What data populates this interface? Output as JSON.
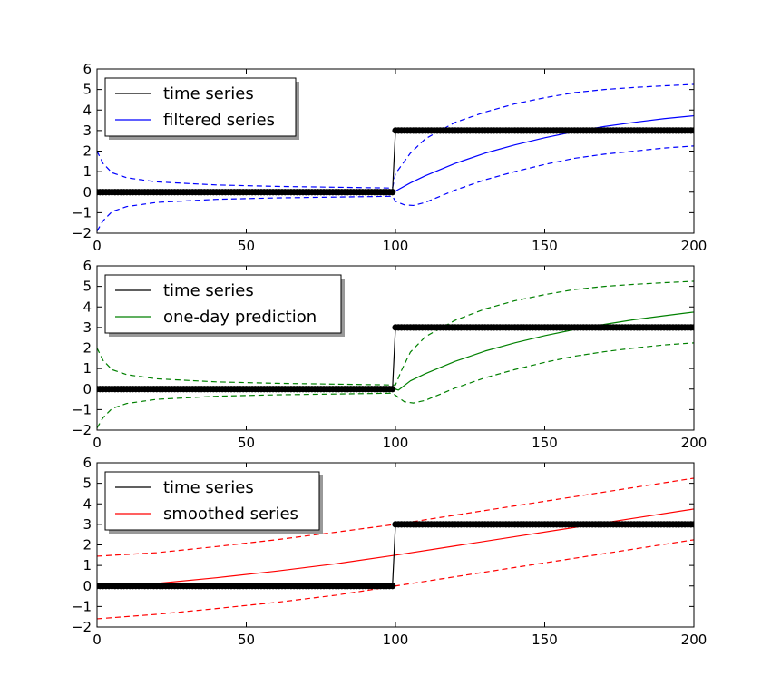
{
  "chart_data": [
    {
      "type": "line",
      "xlim": [
        0,
        200
      ],
      "ylim": [
        -2,
        6
      ],
      "xticks": [
        0,
        50,
        100,
        150,
        200
      ],
      "yticks": [
        -2,
        -1,
        0,
        1,
        2,
        3,
        4,
        5,
        6
      ],
      "grid": false,
      "legend_position": "upper-left",
      "legend": [
        "time series",
        "filtered series"
      ],
      "series": [
        {
          "name": "time series",
          "role": "observed",
          "color": "#000000",
          "x": [
            0,
            99,
            100,
            200
          ],
          "y": [
            0,
            0,
            3,
            3
          ]
        },
        {
          "name": "filtered series",
          "role": "estimate",
          "color": "#0000ff",
          "x": [
            0,
            10,
            20,
            40,
            60,
            80,
            99,
            100,
            105,
            110,
            120,
            130,
            140,
            150,
            160,
            170,
            180,
            190,
            200
          ],
          "y": [
            0,
            0,
            0,
            0,
            0,
            0,
            0,
            0.05,
            0.45,
            0.8,
            1.4,
            1.9,
            2.3,
            2.65,
            2.95,
            3.2,
            3.4,
            3.58,
            3.72
          ]
        },
        {
          "role": "upper-band",
          "color": "#0000ff",
          "x": [
            0,
            2,
            5,
            10,
            20,
            40,
            60,
            80,
            99,
            100,
            105,
            110,
            120,
            130,
            140,
            150,
            160,
            170,
            180,
            190,
            200
          ],
          "y": [
            2.0,
            1.4,
            0.95,
            0.7,
            0.5,
            0.35,
            0.28,
            0.24,
            0.2,
            0.9,
            1.9,
            2.6,
            3.4,
            3.9,
            4.3,
            4.6,
            4.85,
            5.0,
            5.1,
            5.18,
            5.25
          ]
        },
        {
          "role": "lower-band",
          "color": "#0000ff",
          "x": [
            0,
            2,
            5,
            10,
            20,
            40,
            60,
            80,
            99,
            100,
            103,
            106,
            110,
            115,
            120,
            130,
            140,
            150,
            160,
            170,
            180,
            190,
            200
          ],
          "y": [
            -1.9,
            -1.4,
            -0.95,
            -0.7,
            -0.5,
            -0.35,
            -0.28,
            -0.24,
            -0.2,
            -0.45,
            -0.62,
            -0.65,
            -0.5,
            -0.2,
            0.1,
            0.6,
            1.0,
            1.35,
            1.65,
            1.85,
            2.0,
            2.15,
            2.25
          ]
        }
      ]
    },
    {
      "type": "line",
      "xlim": [
        0,
        200
      ],
      "ylim": [
        -2,
        6
      ],
      "xticks": [
        0,
        50,
        100,
        150,
        200
      ],
      "yticks": [
        -2,
        -1,
        0,
        1,
        2,
        3,
        4,
        5,
        6
      ],
      "grid": false,
      "legend_position": "upper-left",
      "legend": [
        "time series",
        "one-day prediction"
      ],
      "series": [
        {
          "name": "time series",
          "role": "observed",
          "color": "#000000",
          "x": [
            0,
            99,
            100,
            200
          ],
          "y": [
            0,
            0,
            3,
            3
          ]
        },
        {
          "name": "one-day prediction",
          "role": "estimate",
          "color": "#008000",
          "x": [
            0,
            10,
            20,
            40,
            60,
            80,
            99,
            100,
            101,
            105,
            110,
            120,
            130,
            140,
            150,
            160,
            170,
            180,
            190,
            200
          ],
          "y": [
            0,
            0,
            0,
            0,
            0,
            0,
            0,
            0,
            -0.05,
            0.4,
            0.75,
            1.35,
            1.85,
            2.25,
            2.6,
            2.9,
            3.15,
            3.38,
            3.57,
            3.75
          ]
        },
        {
          "role": "upper-band",
          "color": "#008000",
          "x": [
            0,
            2,
            5,
            10,
            20,
            40,
            60,
            80,
            99,
            100,
            102,
            105,
            110,
            120,
            130,
            140,
            150,
            160,
            170,
            180,
            190,
            200
          ],
          "y": [
            2.0,
            1.4,
            0.95,
            0.7,
            0.5,
            0.35,
            0.28,
            0.24,
            0.2,
            0.2,
            0.9,
            1.8,
            2.55,
            3.35,
            3.9,
            4.3,
            4.6,
            4.85,
            5.0,
            5.1,
            5.18,
            5.25
          ]
        },
        {
          "role": "lower-band",
          "color": "#008000",
          "x": [
            0,
            2,
            5,
            10,
            20,
            40,
            60,
            80,
            99,
            100,
            103,
            106,
            110,
            115,
            120,
            130,
            140,
            150,
            160,
            170,
            180,
            190,
            200
          ],
          "y": [
            -1.9,
            -1.4,
            -0.95,
            -0.7,
            -0.5,
            -0.35,
            -0.28,
            -0.24,
            -0.2,
            -0.3,
            -0.62,
            -0.68,
            -0.55,
            -0.25,
            0.05,
            0.55,
            0.95,
            1.3,
            1.6,
            1.82,
            2.0,
            2.15,
            2.25
          ]
        }
      ]
    },
    {
      "type": "line",
      "xlim": [
        0,
        200
      ],
      "ylim": [
        -2,
        6
      ],
      "xticks": [
        0,
        50,
        100,
        150,
        200
      ],
      "yticks": [
        -2,
        -1,
        0,
        1,
        2,
        3,
        4,
        5,
        6
      ],
      "grid": false,
      "legend_position": "upper-left",
      "legend": [
        "time series",
        "smoothed series"
      ],
      "series": [
        {
          "name": "time series",
          "role": "observed",
          "color": "#000000",
          "x": [
            0,
            99,
            100,
            200
          ],
          "y": [
            0,
            0,
            3,
            3
          ]
        },
        {
          "name": "smoothed series",
          "role": "estimate",
          "color": "#ff0000",
          "x": [
            0,
            20,
            40,
            60,
            80,
            100,
            120,
            140,
            160,
            180,
            200
          ],
          "y": [
            -0.1,
            0.12,
            0.4,
            0.72,
            1.08,
            1.5,
            1.95,
            2.4,
            2.85,
            3.3,
            3.75
          ]
        },
        {
          "role": "upper-band",
          "color": "#ff0000",
          "x": [
            0,
            20,
            40,
            60,
            80,
            100,
            120,
            140,
            160,
            180,
            200
          ],
          "y": [
            1.45,
            1.62,
            1.92,
            2.25,
            2.62,
            3.0,
            3.45,
            3.9,
            4.35,
            4.8,
            5.25
          ]
        },
        {
          "role": "lower-band",
          "color": "#ff0000",
          "x": [
            0,
            20,
            40,
            60,
            80,
            100,
            120,
            140,
            160,
            180,
            200
          ],
          "y": [
            -1.6,
            -1.38,
            -1.1,
            -0.8,
            -0.45,
            0.0,
            0.45,
            0.9,
            1.35,
            1.8,
            2.25
          ]
        }
      ]
    }
  ]
}
